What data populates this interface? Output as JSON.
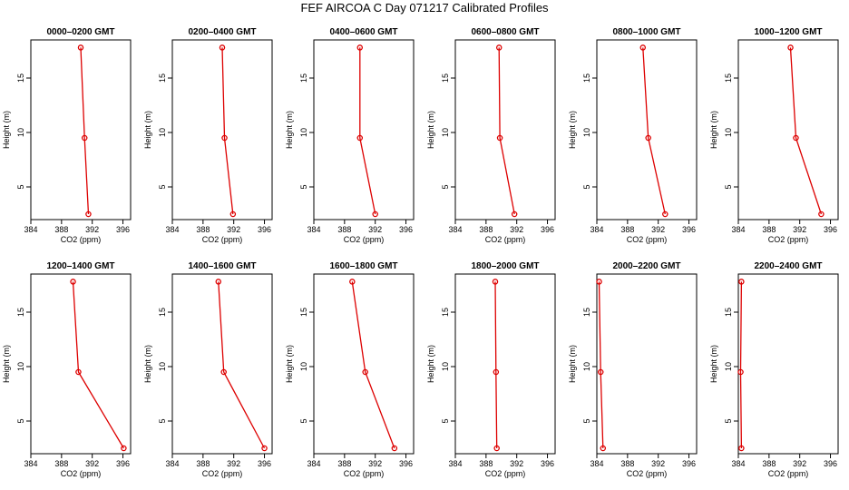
{
  "title": "FEF AIRCOA C  Day 071217  Calibrated Profiles",
  "colors": {
    "series": "#dd0000",
    "axis": "#000000"
  },
  "chart_data": [
    {
      "type": "line",
      "title": "0000–0200 GMT",
      "xlabel": "CO2 (ppm)",
      "ylabel": "Height (m)",
      "xlim": [
        384,
        397
      ],
      "ylim": [
        2,
        18.5
      ],
      "xticks": [
        "384",
        "388",
        "392",
        "396"
      ],
      "yticks": [
        "5",
        "10",
        "15"
      ],
      "x": [
        390.5,
        391.0,
        391.5
      ],
      "y": [
        17.8,
        9.5,
        2.5
      ]
    },
    {
      "type": "line",
      "title": "0200–0400 GMT",
      "xlabel": "CO2 (ppm)",
      "ylabel": "Height (m)",
      "xlim": [
        384,
        397
      ],
      "ylim": [
        2,
        18.5
      ],
      "xticks": [
        "384",
        "388",
        "392",
        "396"
      ],
      "yticks": [
        "5",
        "10",
        "15"
      ],
      "x": [
        390.5,
        390.8,
        391.9
      ],
      "y": [
        17.8,
        9.5,
        2.5
      ]
    },
    {
      "type": "line",
      "title": "0400–0600 GMT",
      "xlabel": "CO2 (ppm)",
      "ylabel": "Height (m)",
      "xlim": [
        384,
        397
      ],
      "ylim": [
        2,
        18.5
      ],
      "xticks": [
        "384",
        "388",
        "392",
        "396"
      ],
      "yticks": [
        "5",
        "10",
        "15"
      ],
      "x": [
        390.0,
        390.0,
        392.0
      ],
      "y": [
        17.8,
        9.5,
        2.5
      ]
    },
    {
      "type": "line",
      "title": "0600–0800 GMT",
      "xlabel": "CO2 (ppm)",
      "ylabel": "Height (m)",
      "xlim": [
        384,
        397
      ],
      "ylim": [
        2,
        18.5
      ],
      "xticks": [
        "384",
        "388",
        "392",
        "396"
      ],
      "yticks": [
        "5",
        "10",
        "15"
      ],
      "x": [
        389.7,
        389.8,
        391.7
      ],
      "y": [
        17.8,
        9.5,
        2.5
      ]
    },
    {
      "type": "line",
      "title": "0800–1000 GMT",
      "xlabel": "CO2 (ppm)",
      "ylabel": "Height (m)",
      "xlim": [
        384,
        397
      ],
      "ylim": [
        2,
        18.5
      ],
      "xticks": [
        "384",
        "388",
        "392",
        "396"
      ],
      "yticks": [
        "5",
        "10",
        "15"
      ],
      "x": [
        390.0,
        390.7,
        392.9
      ],
      "y": [
        17.8,
        9.5,
        2.5
      ]
    },
    {
      "type": "line",
      "title": "1000–1200 GMT",
      "xlabel": "CO2 (ppm)",
      "ylabel": "Height (m)",
      "xlim": [
        384,
        397
      ],
      "ylim": [
        2,
        18.5
      ],
      "xticks": [
        "384",
        "388",
        "392",
        "396"
      ],
      "yticks": [
        "5",
        "10",
        "15"
      ],
      "x": [
        390.8,
        391.5,
        394.8
      ],
      "y": [
        17.8,
        9.5,
        2.5
      ]
    },
    {
      "type": "line",
      "title": "1200–1400 GMT",
      "xlabel": "CO2 (ppm)",
      "ylabel": "Height (m)",
      "xlim": [
        384,
        397
      ],
      "ylim": [
        2,
        18.5
      ],
      "xticks": [
        "384",
        "388",
        "392",
        "396"
      ],
      "yticks": [
        "5",
        "10",
        "15"
      ],
      "x": [
        389.5,
        390.2,
        396.1
      ],
      "y": [
        17.8,
        9.5,
        2.5
      ]
    },
    {
      "type": "line",
      "title": "1400–1600 GMT",
      "xlabel": "CO2 (ppm)",
      "ylabel": "Height (m)",
      "xlim": [
        384,
        397
      ],
      "ylim": [
        2,
        18.5
      ],
      "xticks": [
        "384",
        "388",
        "392",
        "396"
      ],
      "yticks": [
        "5",
        "10",
        "15"
      ],
      "x": [
        390.0,
        390.7,
        396.0
      ],
      "y": [
        17.8,
        9.5,
        2.5
      ]
    },
    {
      "type": "line",
      "title": "1600–1800 GMT",
      "xlabel": "CO2 (ppm)",
      "ylabel": "Height (m)",
      "xlim": [
        384,
        397
      ],
      "ylim": [
        2,
        18.5
      ],
      "xticks": [
        "384",
        "388",
        "392",
        "396"
      ],
      "yticks": [
        "5",
        "10",
        "15"
      ],
      "x": [
        389.0,
        390.7,
        394.5
      ],
      "y": [
        17.8,
        9.5,
        2.5
      ]
    },
    {
      "type": "line",
      "title": "1800–2000 GMT",
      "xlabel": "CO2 (ppm)",
      "ylabel": "Height (m)",
      "xlim": [
        384,
        397
      ],
      "ylim": [
        2,
        18.5
      ],
      "xticks": [
        "384",
        "388",
        "392",
        "396"
      ],
      "yticks": [
        "5",
        "10",
        "15"
      ],
      "x": [
        389.2,
        389.3,
        389.4
      ],
      "y": [
        17.8,
        9.5,
        2.5
      ]
    },
    {
      "type": "line",
      "title": "2000–2200 GMT",
      "xlabel": "CO2 (ppm)",
      "ylabel": "Height (m)",
      "xlim": [
        384,
        397
      ],
      "ylim": [
        2,
        18.5
      ],
      "xticks": [
        "384",
        "388",
        "392",
        "396"
      ],
      "yticks": [
        "5",
        "10",
        "15"
      ],
      "x": [
        384.3,
        384.5,
        384.8
      ],
      "y": [
        17.8,
        9.5,
        2.5
      ]
    },
    {
      "type": "line",
      "title": "2200–2400 GMT",
      "xlabel": "CO2 (ppm)",
      "ylabel": "Height (m)",
      "xlim": [
        384,
        397
      ],
      "ylim": [
        2,
        18.5
      ],
      "xticks": [
        "384",
        "388",
        "392",
        "396"
      ],
      "yticks": [
        "5",
        "10",
        "15"
      ],
      "x": [
        384.4,
        384.3,
        384.4
      ],
      "y": [
        17.8,
        9.5,
        2.5
      ]
    }
  ]
}
